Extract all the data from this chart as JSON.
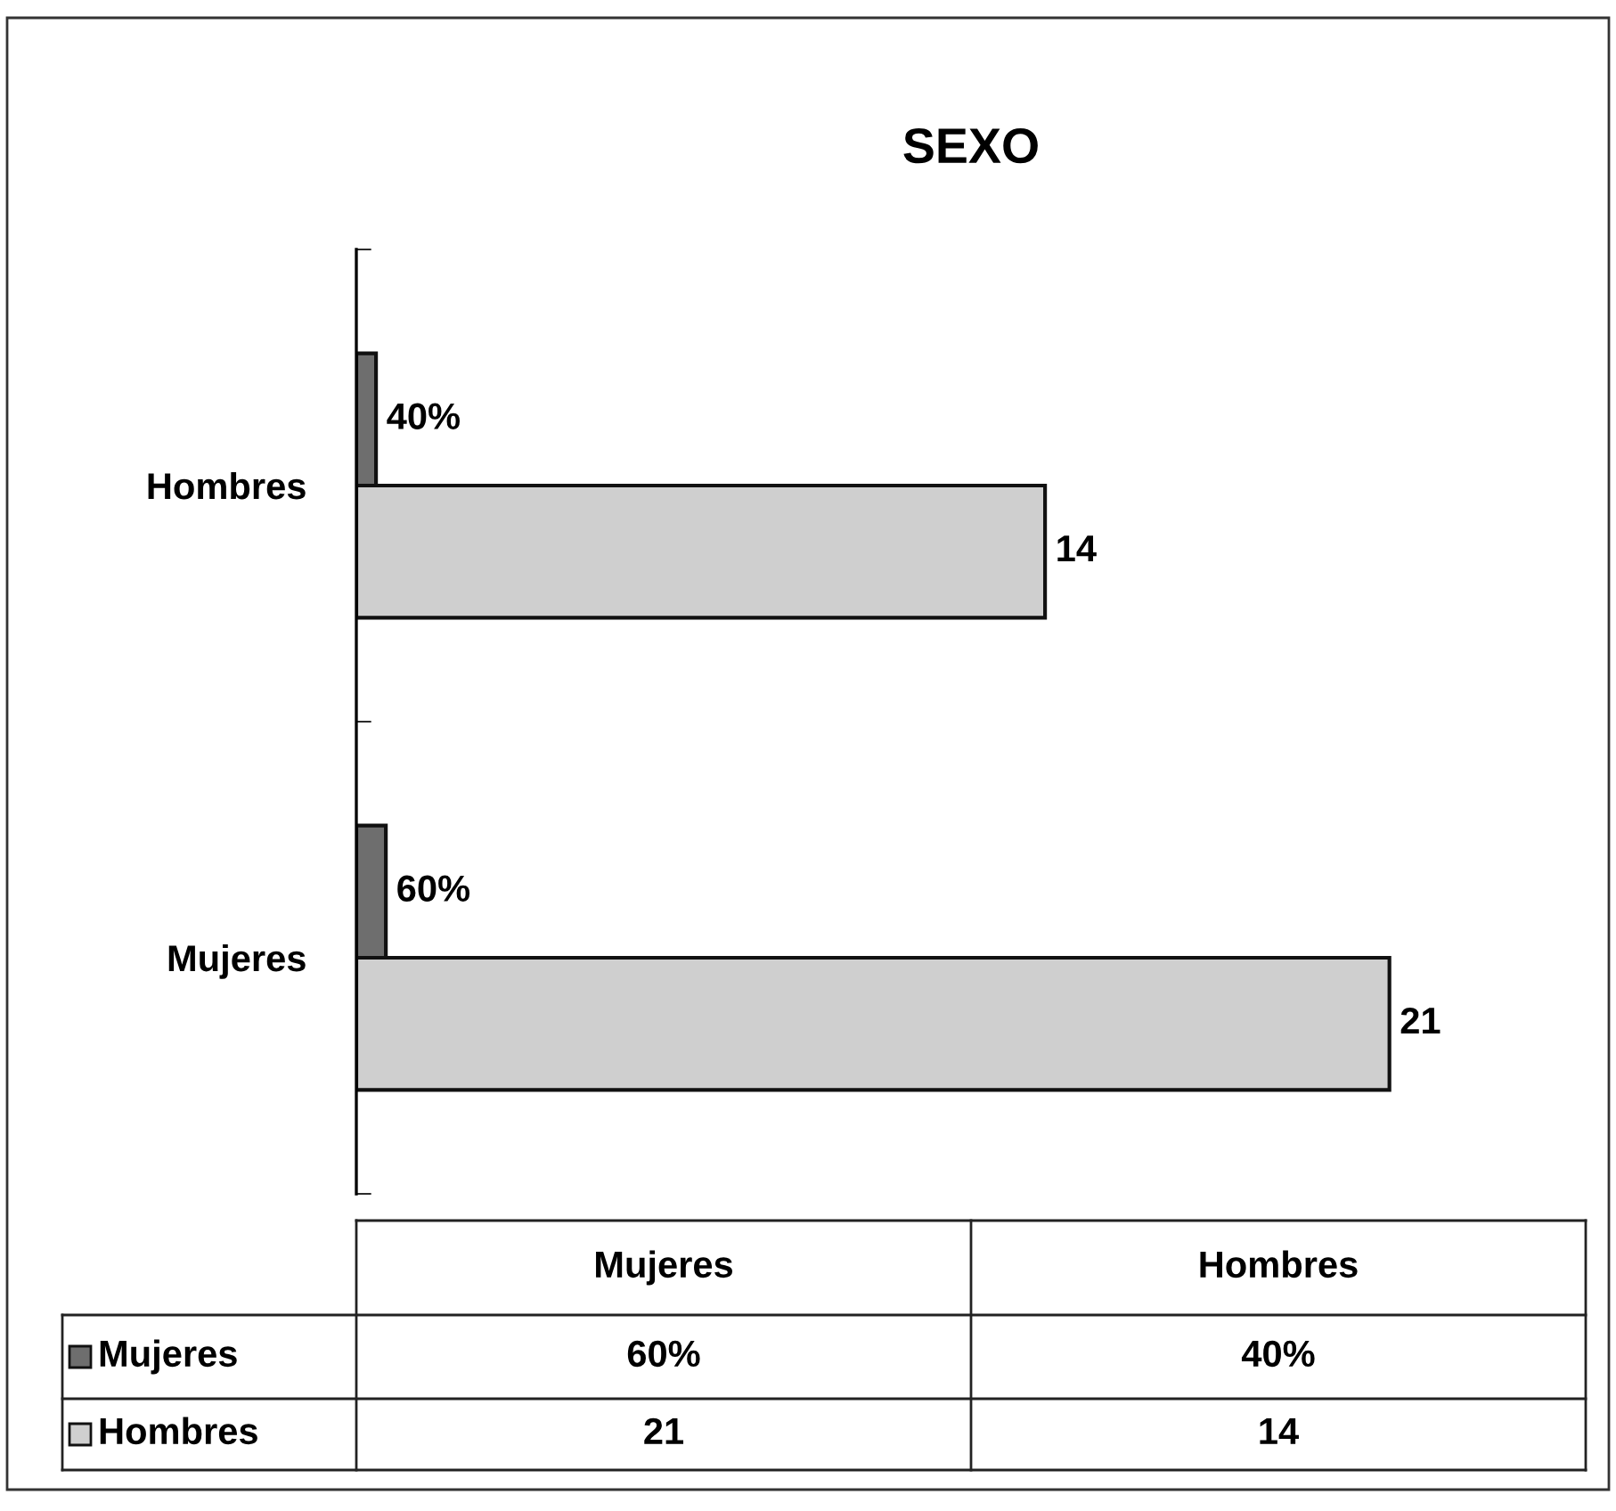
{
  "chart_data": {
    "type": "bar",
    "orientation": "horizontal",
    "title": "SEXO",
    "categories": [
      "Hombres",
      "Mujeres"
    ],
    "series": [
      {
        "name": "Mujeres",
        "color": "#6e6e6e",
        "values": [
          0.4,
          0.6
        ],
        "value_labels": [
          "40%",
          "60%"
        ]
      },
      {
        "name": "Hombres",
        "color": "#cfcfcf",
        "values": [
          14,
          21
        ],
        "value_labels": [
          "14",
          "21"
        ]
      }
    ],
    "data_labels": true,
    "legend": "bottom",
    "grid": false,
    "tick_labels": "y"
  }
}
